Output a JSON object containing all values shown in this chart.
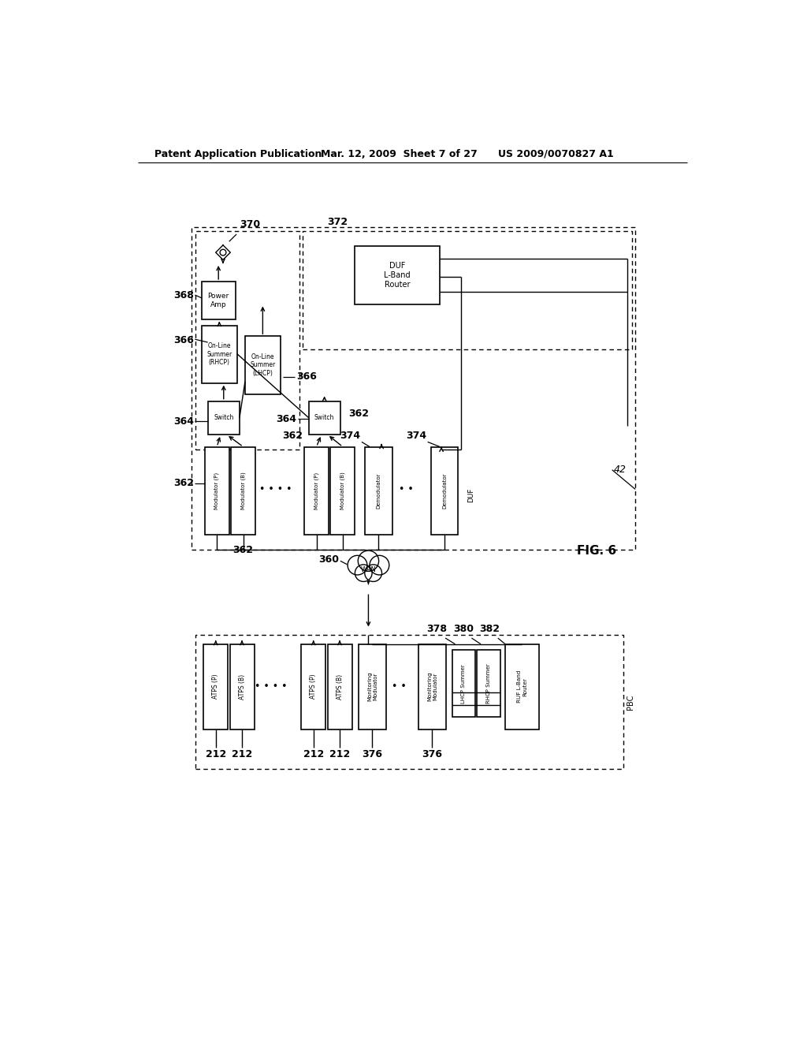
{
  "bg_color": "#ffffff",
  "header_left": "Patent Application Publication",
  "header_mid": "Mar. 12, 2009  Sheet 7 of 27",
  "header_right": "US 2009/0070827 A1",
  "fig_label": "FIG. 6"
}
